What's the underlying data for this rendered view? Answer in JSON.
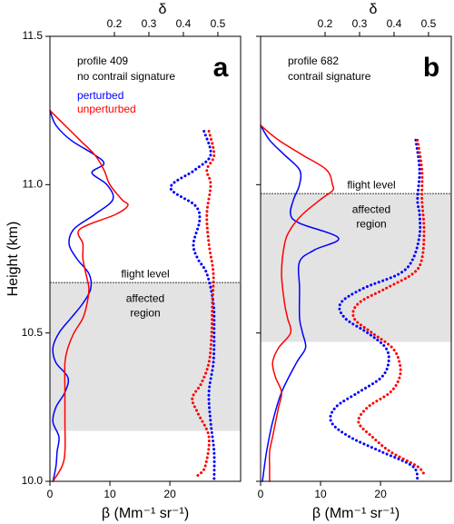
{
  "chart_data": [
    {
      "type": "line",
      "panel_label": "a",
      "annotations": [
        "profile 409",
        "no contrail signature"
      ],
      "y_label": "Height (km)",
      "x_label": "β (Mm⁻¹ sr⁻¹)",
      "x2_label": "δ",
      "xlim": [
        0,
        31.8
      ],
      "xticks": [
        0,
        10,
        20
      ],
      "x2lim": [
        0.013,
        0.566
      ],
      "x2ticks": [
        0.2,
        0.3,
        0.4,
        0.5
      ],
      "ylim": [
        10,
        11.5
      ],
      "yticks": [
        {
          "value": 10,
          "label": "10.0"
        },
        10.5,
        {
          "value": 11,
          "label": "11.0"
        },
        11.5
      ],
      "affected_region": [
        10.17,
        10.67
      ],
      "flight_level": 10.67,
      "flight_level_label": "flight level",
      "region_label": [
        "affected",
        "region"
      ],
      "series": [
        {
          "name": "perturbed",
          "color": "#0000ff",
          "axis": "x",
          "style": "solid",
          "heights": [
            11.25,
            11.2,
            11.15,
            11.1,
            11.07,
            11.04,
            11.0,
            10.95,
            10.9,
            10.85,
            10.8,
            10.75,
            10.7,
            10.65,
            10.6,
            10.55,
            10.5,
            10.45,
            10.4,
            10.35,
            10.3,
            10.25,
            10.2,
            10.15,
            10.1,
            10.05,
            10.0
          ],
          "values": [
            0,
            1.0,
            3.5,
            7.5,
            9.0,
            7.0,
            9.5,
            10.5,
            7.5,
            4.0,
            3.2,
            4.5,
            6.5,
            6.8,
            5.5,
            3.5,
            1.5,
            0.5,
            1.0,
            3.0,
            2.5,
            1.0,
            0.5,
            1.5,
            1.2,
            1.0,
            0.5
          ]
        },
        {
          "name": "unperturbed",
          "color": "#ff0000",
          "axis": "x",
          "style": "solid",
          "heights": [
            11.25,
            11.2,
            11.15,
            11.1,
            11.05,
            11.0,
            10.95,
            10.93,
            10.9,
            10.85,
            10.8,
            10.75,
            10.7,
            10.65,
            10.6,
            10.55,
            10.5,
            10.45,
            10.4,
            10.3,
            10.2,
            10.1,
            10.05,
            10.0
          ],
          "values": [
            0,
            2.5,
            5.0,
            7.5,
            9.0,
            10,
            12,
            13,
            11,
            5,
            5.5,
            5.5,
            6.0,
            6.5,
            6.2,
            5.5,
            4.0,
            3.0,
            2.5,
            2.5,
            2.5,
            2.5,
            2.0,
            0.5
          ]
        },
        {
          "color": "#0000ff",
          "axis": "x2",
          "style": "dotted",
          "heights": [
            11.18,
            11.1,
            11.05,
            10.99,
            10.93,
            10.88,
            10.8,
            10.75,
            10.7,
            10.6,
            10.5,
            10.4,
            10.3,
            10.2,
            10.1,
            10.0
          ],
          "values": [
            0.46,
            0.479,
            0.434,
            0.363,
            0.434,
            0.447,
            0.429,
            0.442,
            0.468,
            0.487,
            0.489,
            0.487,
            0.474,
            0.479,
            0.489,
            0.489
          ]
        },
        {
          "color": "#ff0000",
          "axis": "x2",
          "style": "dotted",
          "heights": [
            11.18,
            11.1,
            11.05,
            11.0,
            10.9,
            10.8,
            10.7,
            10.6,
            10.5,
            10.4,
            10.33,
            10.28,
            10.23,
            10.15,
            10.05,
            10.02
          ],
          "values": [
            0.474,
            0.489,
            0.468,
            0.479,
            0.468,
            0.474,
            0.487,
            0.484,
            0.482,
            0.474,
            0.452,
            0.426,
            0.442,
            0.474,
            0.463,
            0.442
          ]
        }
      ]
    },
    {
      "type": "line",
      "panel_label": "b",
      "annotations": [
        "profile 682",
        "contrail signature"
      ],
      "x_label": "β (Mm⁻¹ sr⁻¹)",
      "x2_label": "δ",
      "xlim": [
        0,
        31.8
      ],
      "xticks": [
        0,
        10,
        20
      ],
      "x2lim": [
        0.013,
        0.566
      ],
      "x2ticks": [
        0.2,
        0.3,
        0.4,
        0.5
      ],
      "ylim": [
        10,
        11.5
      ],
      "affected_region": [
        10.47,
        10.97
      ],
      "flight_level": 10.97,
      "flight_level_label": "flight level",
      "region_label": [
        "affected",
        "region"
      ],
      "series": [
        {
          "color": "#0000ff",
          "axis": "x",
          "style": "solid",
          "heights": [
            11.2,
            11.15,
            11.1,
            11.05,
            11.0,
            10.95,
            10.9,
            10.87,
            10.82,
            10.78,
            10.74,
            10.65,
            10.55,
            10.5,
            10.45,
            10.4,
            10.3,
            10.2,
            10.1,
            10.0
          ],
          "values": [
            0,
            1.5,
            4,
            6.5,
            6.5,
            5.5,
            5.0,
            6.5,
            13,
            9,
            6.5,
            6.5,
            6.5,
            7,
            7.5,
            6,
            3.5,
            2.0,
            1.0,
            0.3
          ]
        },
        {
          "color": "#ff0000",
          "axis": "x",
          "style": "solid",
          "heights": [
            11.2,
            11.15,
            11.1,
            11.05,
            11.0,
            10.98,
            10.95,
            10.9,
            10.85,
            10.8,
            10.7,
            10.6,
            10.55,
            10.5,
            10.45,
            10.4,
            10.35,
            10.3,
            10.25,
            10.2,
            10.15,
            10.1,
            10.05,
            10.0
          ],
          "values": [
            0,
            3,
            7,
            11,
            12,
            12,
            10,
            7,
            5,
            4,
            3.5,
            4.0,
            4.5,
            5,
            3.0,
            2.0,
            2.5,
            3.5,
            3.0,
            2.5,
            2.0,
            1.5,
            1.5,
            1.5
          ]
        },
        {
          "color": "#0000ff",
          "axis": "x2",
          "style": "dotted",
          "heights": [
            11.15,
            11.05,
            10.95,
            10.9,
            10.83,
            10.75,
            10.7,
            10.65,
            10.6,
            10.55,
            10.5,
            10.45,
            10.4,
            10.35,
            10.3,
            10.25,
            10.2,
            10.15,
            10.1,
            10.05,
            10.0
          ],
          "values": [
            0.463,
            0.474,
            0.468,
            0.474,
            0.474,
            0.455,
            0.416,
            0.31,
            0.245,
            0.258,
            0.324,
            0.376,
            0.384,
            0.363,
            0.297,
            0.231,
            0.218,
            0.271,
            0.363,
            0.455,
            0.468
          ]
        },
        {
          "color": "#ff0000",
          "axis": "x2",
          "style": "dotted",
          "heights": [
            11.15,
            11.05,
            10.95,
            10.85,
            10.75,
            10.7,
            10.65,
            10.6,
            10.55,
            10.5,
            10.45,
            10.4,
            10.35,
            10.3,
            10.25,
            10.2,
            10.15,
            10.1,
            10.05,
            10.02
          ],
          "values": [
            0.468,
            0.481,
            0.481,
            0.487,
            0.481,
            0.455,
            0.376,
            0.297,
            0.284,
            0.337,
            0.395,
            0.416,
            0.416,
            0.389,
            0.324,
            0.297,
            0.337,
            0.389,
            0.468,
            0.489
          ]
        }
      ]
    }
  ]
}
